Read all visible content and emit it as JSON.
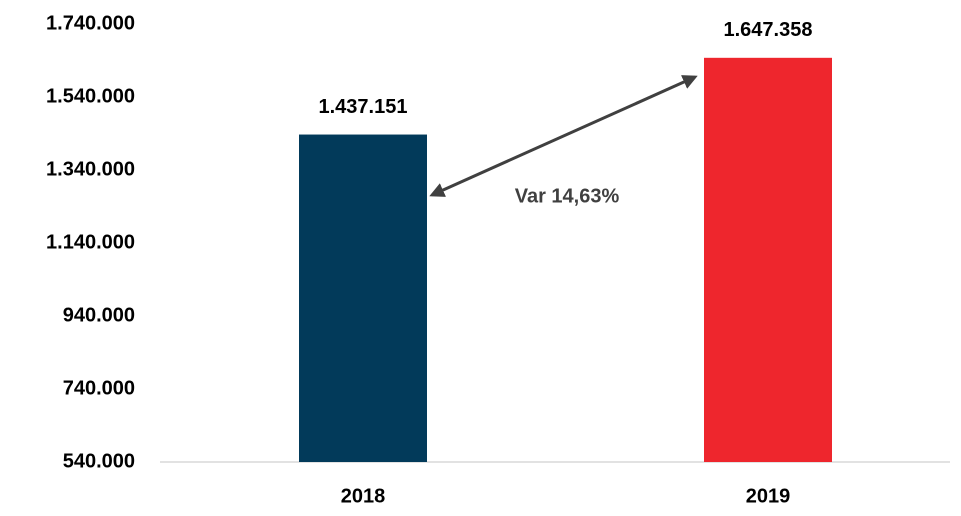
{
  "chart_data": {
    "type": "bar",
    "categories": [
      "2018",
      "2019"
    ],
    "values": [
      1437151,
      1647358
    ],
    "value_labels": [
      "1.437.151",
      "1.647.358"
    ],
    "colors": [
      "#023a5a",
      "#ee262d"
    ],
    "annotation": "Var 14,63%",
    "ylim": [
      540000,
      1740000
    ],
    "yticks": [
      {
        "value": 540000,
        "label": "540.000"
      },
      {
        "value": 740000,
        "label": "740.000"
      },
      {
        "value": 940000,
        "label": "940.000"
      },
      {
        "value": 1140000,
        "label": "1.140.000"
      },
      {
        "value": 1340000,
        "label": "1.340.000"
      },
      {
        "value": 1540000,
        "label": "1.540.000"
      },
      {
        "value": 1740000,
        "label": "1.740.000"
      }
    ],
    "grid": false
  }
}
